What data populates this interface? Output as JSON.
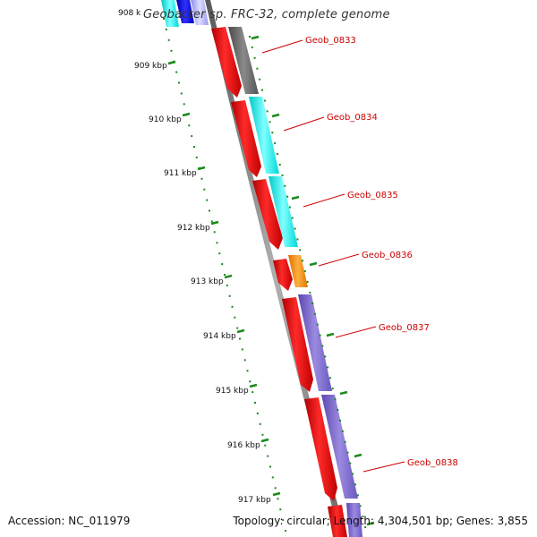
{
  "title": "Geobacter sp. FRC-32, complete genome",
  "accession": "Accession: NC_011979",
  "summary": "Topology: circular; Length: 4,304,501 bp; Genes: 3,855",
  "ruler_labels": [
    "908 k",
    "909 kbp",
    "910 kbp",
    "911 kbp",
    "912 kbp",
    "913 kbp",
    "914 kbp",
    "915 kbp",
    "916 kbp",
    "917 kbp"
  ],
  "colors": {
    "backbone": "#888888",
    "ruler_tick": "#1b8a1b",
    "gene_red": "#ff0000",
    "label_red": "#cc0000",
    "cog_gray": "#6e6e6e",
    "cog_cyan": "#00f0f0",
    "cog_orange": "#ff8c00",
    "cog_purple": "#7b68cc",
    "cog_blue": "#1010cc",
    "cog_lightblue": "#aaaaff"
  },
  "genes": [
    {
      "name": "Geob_0833",
      "cog_color": "gray"
    },
    {
      "name": "Geob_0834",
      "cog_color": "cyan"
    },
    {
      "name": "Geob_0835",
      "cog_color": "cyan"
    },
    {
      "name": "Geob_0836",
      "cog_color": "orange"
    },
    {
      "name": "Geob_0837",
      "cog_color": "purple"
    },
    {
      "name": "Geob_0838",
      "cog_color": "purple"
    }
  ]
}
